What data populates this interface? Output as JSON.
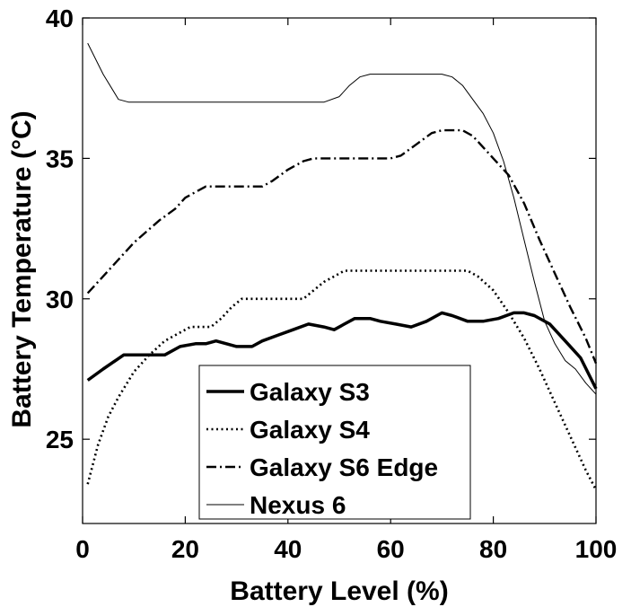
{
  "chart_data": {
    "type": "line",
    "title": "",
    "xlabel": "Battery Level (%)",
    "ylabel": "Battery Temperature (°C)",
    "xlim": [
      0,
      100
    ],
    "ylim": [
      22,
      40
    ],
    "xticks": [
      0,
      20,
      40,
      60,
      80,
      100
    ],
    "yticks": [
      25,
      30,
      35,
      40
    ],
    "xtick_labels": [
      "0",
      "20",
      "40",
      "60",
      "80",
      "100"
    ],
    "ytick_labels": [
      "25",
      "30",
      "35",
      "40"
    ],
    "grid": false,
    "legend_position": "bottom-center",
    "series": [
      {
        "name": "Galaxy S3",
        "style": "solid-thick",
        "color": "#000000",
        "x": [
          1,
          4,
          8,
          12,
          16,
          19,
          22,
          24,
          26,
          28,
          30,
          33,
          35,
          38,
          41,
          44,
          47,
          49,
          51,
          53,
          56,
          58,
          61,
          64,
          67,
          70,
          72,
          75,
          78,
          81,
          84,
          86,
          88,
          91,
          94,
          97,
          100
        ],
        "y": [
          27.1,
          27.5,
          28.0,
          28.0,
          28.0,
          28.3,
          28.4,
          28.4,
          28.5,
          28.4,
          28.3,
          28.3,
          28.5,
          28.7,
          28.9,
          29.1,
          29.0,
          28.9,
          29.1,
          29.3,
          29.3,
          29.2,
          29.1,
          29.0,
          29.2,
          29.5,
          29.4,
          29.2,
          29.2,
          29.3,
          29.5,
          29.5,
          29.4,
          29.1,
          28.5,
          27.9,
          26.8
        ]
      },
      {
        "name": "Galaxy S4",
        "style": "dotted",
        "color": "#000000",
        "x": [
          1,
          3,
          5,
          7,
          10,
          13,
          16,
          19,
          21,
          23,
          25,
          27,
          29,
          31,
          33,
          35,
          40,
          43,
          45,
          47,
          49,
          51,
          53,
          60,
          70,
          75,
          77,
          80,
          83,
          86,
          89,
          92,
          95,
          98,
          100
        ],
        "y": [
          23.4,
          24.8,
          25.8,
          26.5,
          27.4,
          28.0,
          28.5,
          28.8,
          29.0,
          29.0,
          29.0,
          29.3,
          29.7,
          30.0,
          30.0,
          30.0,
          30.0,
          30.0,
          30.3,
          30.6,
          30.8,
          31.0,
          31.0,
          31.0,
          31.0,
          31.0,
          30.8,
          30.3,
          29.5,
          28.6,
          27.5,
          26.3,
          25.1,
          23.9,
          23.2
        ]
      },
      {
        "name": "Galaxy S6 Edge",
        "style": "dash-dot",
        "color": "#000000",
        "x": [
          1,
          5,
          10,
          15,
          18,
          20,
          22,
          24,
          26,
          30,
          35,
          37,
          40,
          43,
          45,
          50,
          55,
          60,
          62,
          65,
          68,
          70,
          72,
          74,
          76,
          78,
          80,
          83,
          86,
          89,
          92,
          95,
          98,
          100
        ],
        "y": [
          30.2,
          31.0,
          32.0,
          32.8,
          33.2,
          33.6,
          33.8,
          34.0,
          34.0,
          34.0,
          34.0,
          34.2,
          34.6,
          34.9,
          35.0,
          35.0,
          35.0,
          35.0,
          35.1,
          35.5,
          35.9,
          36.0,
          36.0,
          36.0,
          35.8,
          35.4,
          35.0,
          34.4,
          33.4,
          32.1,
          30.9,
          29.7,
          28.6,
          27.7
        ]
      },
      {
        "name": "Nexus 6",
        "style": "solid-thin",
        "color": "#000000",
        "x": [
          1,
          4,
          7,
          9,
          12,
          20,
          30,
          40,
          47,
          50,
          52,
          54,
          56,
          60,
          65,
          70,
          72,
          74,
          76,
          78,
          80,
          82,
          84,
          86,
          88,
          90,
          92,
          94,
          96,
          98,
          100
        ],
        "y": [
          39.1,
          38.0,
          37.1,
          37.0,
          37.0,
          37.0,
          37.0,
          37.0,
          37.0,
          37.2,
          37.6,
          37.9,
          38.0,
          38.0,
          38.0,
          38.0,
          37.9,
          37.6,
          37.1,
          36.6,
          35.9,
          34.9,
          33.6,
          32.1,
          30.6,
          29.2,
          28.4,
          27.8,
          27.5,
          27.0,
          26.6
        ]
      }
    ]
  }
}
